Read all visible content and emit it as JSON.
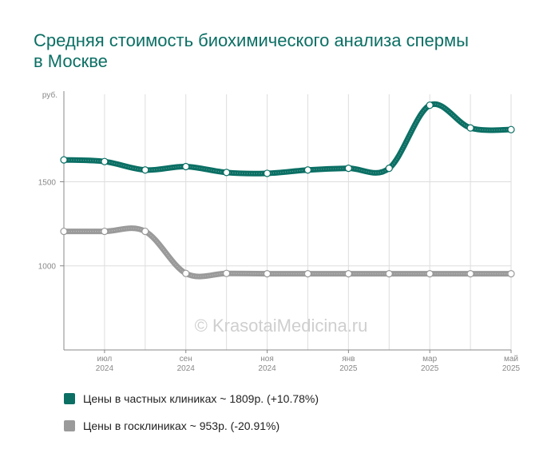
{
  "colors": {
    "private": "#0b6f64",
    "public": "#9a9a9a",
    "title": "#0b6f64",
    "grid": "#dddddd",
    "axis": "#888888",
    "tick_text": "#888888",
    "watermark": "#cfcfcf"
  },
  "watermark": "© KrasotaiMedicina.ru",
  "chart_data": {
    "type": "line",
    "title": "Средняя стоимость биохимического анализа спермы в Москве",
    "ylabel": "руб.",
    "ylim": [
      500,
      2020
    ],
    "yticks": [
      1000,
      1500
    ],
    "grid": true,
    "legend_position": "bottom",
    "x": [
      "2024-06",
      "2024-07",
      "2024-08",
      "2024-09",
      "2024-10",
      "2024-11",
      "2024-12",
      "2025-01",
      "2025-02",
      "2025-03",
      "2025-04",
      "2025-05"
    ],
    "x_tick_labels": [
      {
        "x": "2024-07",
        "month": "июл",
        "year": "2024"
      },
      {
        "x": "2024-09",
        "month": "сен",
        "year": "2024"
      },
      {
        "x": "2024-11",
        "month": "ноя",
        "year": "2024"
      },
      {
        "x": "2025-01",
        "month": "янв",
        "year": "2025"
      },
      {
        "x": "2025-03",
        "month": "мар",
        "year": "2025"
      },
      {
        "x": "2025-05",
        "month": "май",
        "year": "2025"
      }
    ],
    "series": [
      {
        "name": "Цены в частных клиниках",
        "legend": "Цены в частных клиниках ~ 1809р. (+10.78%)",
        "color": "#0b6f64",
        "values": [
          1630,
          1620,
          1570,
          1590,
          1555,
          1550,
          1570,
          1580,
          1580,
          1955,
          1820,
          1810
        ]
      },
      {
        "name": "Цены в госклиниках",
        "legend": "Цены в госклиниках ~ 953р. (-20.91%)",
        "color": "#9a9a9a",
        "values": [
          1205,
          1205,
          1205,
          955,
          955,
          953,
          953,
          953,
          953,
          953,
          953,
          953
        ]
      }
    ]
  }
}
